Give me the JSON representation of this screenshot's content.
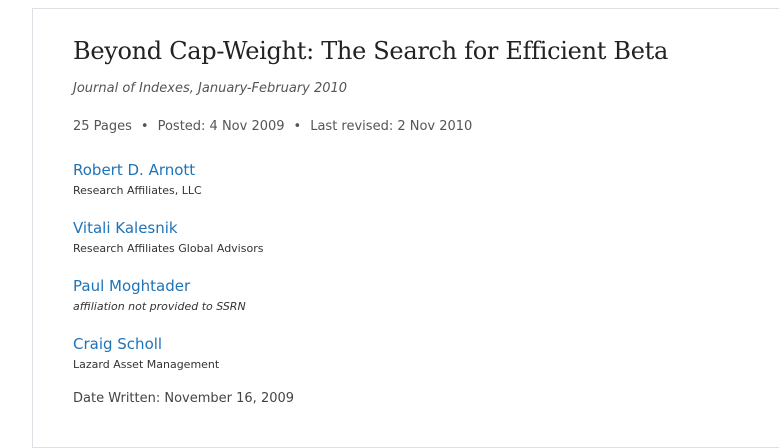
{
  "paper": {
    "title": "Beyond Cap-Weight: The Search for Efficient Beta",
    "journal": "Journal of Indexes, January-February 2010",
    "pages": "25 Pages",
    "posted": "Posted: 4 Nov 2009",
    "revised": "Last revised: 2 Nov 2010",
    "separator": "•",
    "date_written": "Date Written: November 16, 2009"
  },
  "authors": [
    {
      "name": "Robert D. Arnott",
      "affiliation": "Research Affiliates, LLC"
    },
    {
      "name": "Vitali Kalesnik",
      "affiliation": "Research Affiliates Global Advisors"
    },
    {
      "name": "Paul Moghtader",
      "affiliation": "affiliation not provided to SSRN"
    },
    {
      "name": "Craig Scholl",
      "affiliation": "Lazard Asset Management"
    }
  ],
  "colors": {
    "link": "#1f73b7",
    "text": "#222222"
  }
}
